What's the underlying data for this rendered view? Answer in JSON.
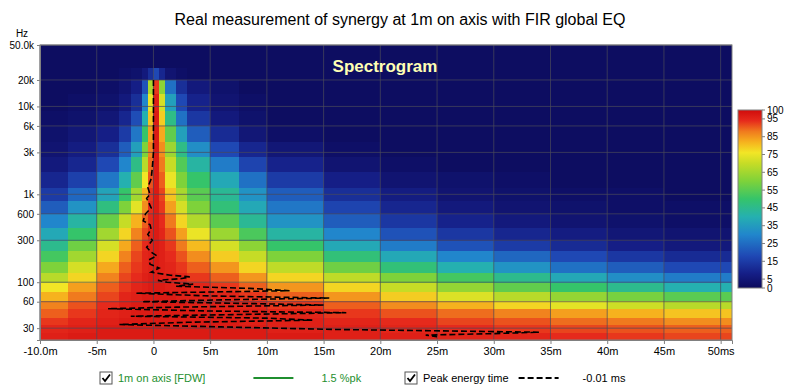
{
  "chart_data": {
    "type": "heatmap",
    "title": "Real measurement of synergy at 1m on axis with FIR global EQ",
    "annotation": "Spectrogram",
    "y_label": "Hz",
    "log": "y",
    "grid": true,
    "xlim": [
      -10,
      51
    ],
    "xticks": [
      {
        "value": -10,
        "label": "-10.0m"
      },
      {
        "value": -5,
        "label": "-5m"
      },
      0,
      {
        "value": 5,
        "label": "5m"
      },
      {
        "value": 10,
        "label": "10m"
      },
      {
        "value": 15,
        "label": "15m"
      },
      {
        "value": 20,
        "label": "20m"
      },
      {
        "value": 25,
        "label": "25m"
      },
      {
        "value": 30,
        "label": "30m"
      },
      {
        "value": 35,
        "label": "35m"
      },
      {
        "value": 40,
        "label": "40m"
      },
      {
        "value": 45,
        "label": "45m"
      },
      {
        "value": 50,
        "label": "50ms"
      }
    ],
    "ylim": [
      22,
      50000
    ],
    "yticks": [
      30,
      60,
      100,
      300,
      600,
      {
        "value": 1000,
        "label": "1k"
      },
      {
        "value": 3000,
        "label": "3k"
      },
      {
        "value": 6000,
        "label": "6k"
      },
      {
        "value": 10000,
        "label": "10k"
      },
      {
        "value": 20000,
        "label": "20k"
      },
      {
        "value": 50000,
        "label": "50.0k"
      }
    ],
    "x_bins": [
      -10,
      -7.5,
      -5,
      -3,
      -2,
      -1,
      -0.5,
      0,
      0.5,
      1,
      2,
      3,
      5,
      7.5,
      10,
      15,
      20,
      25,
      30,
      35,
      40,
      45,
      51
    ],
    "y_bins": [
      22,
      27,
      33,
      40,
      50,
      62,
      78,
      100,
      130,
      170,
      230,
      300,
      420,
      600,
      850,
      1200,
      1800,
      2700,
      4000,
      6000,
      9000,
      14000,
      20000,
      28000,
      50000
    ],
    "values": [
      [
        96,
        97,
        97,
        97,
        97,
        97,
        97,
        97,
        97,
        97,
        97,
        97,
        97,
        97,
        97,
        96,
        96,
        95,
        95,
        94,
        93,
        92
      ],
      [
        95,
        96,
        97,
        97,
        97,
        97,
        97,
        97,
        97,
        97,
        97,
        97,
        97,
        97,
        96,
        96,
        95,
        94,
        93,
        92,
        91,
        90
      ],
      [
        93,
        95,
        96,
        97,
        97,
        97,
        97,
        97,
        97,
        97,
        97,
        97,
        97,
        96,
        96,
        95,
        94,
        92,
        91,
        89,
        88,
        86
      ],
      [
        90,
        93,
        95,
        96,
        97,
        97,
        97,
        97,
        97,
        97,
        97,
        97,
        96,
        96,
        95,
        93,
        91,
        89,
        87,
        84,
        82,
        80
      ],
      [
        87,
        91,
        94,
        96,
        97,
        97,
        97,
        97,
        97,
        97,
        97,
        96,
        96,
        95,
        93,
        90,
        86,
        82,
        78,
        74,
        71,
        68
      ],
      [
        82,
        88,
        92,
        95,
        96,
        97,
        97,
        97,
        97,
        97,
        96,
        96,
        95,
        93,
        90,
        85,
        79,
        73,
        68,
        63,
        59,
        55
      ],
      [
        76,
        84,
        90,
        93,
        95,
        96,
        97,
        97,
        97,
        96,
        96,
        95,
        93,
        90,
        85,
        78,
        70,
        63,
        56,
        50,
        45,
        40
      ],
      [
        68,
        78,
        87,
        92,
        94,
        96,
        97,
        97,
        96,
        96,
        95,
        93,
        90,
        85,
        78,
        69,
        60,
        52,
        45,
        38,
        32,
        28
      ],
      [
        60,
        72,
        83,
        90,
        93,
        95,
        96,
        97,
        96,
        95,
        93,
        90,
        85,
        78,
        69,
        58,
        48,
        40,
        33,
        26,
        22,
        18
      ],
      [
        52,
        65,
        78,
        87,
        92,
        95,
        96,
        97,
        96,
        94,
        91,
        86,
        79,
        70,
        60,
        48,
        38,
        30,
        24,
        18,
        14,
        11
      ],
      [
        45,
        58,
        72,
        83,
        90,
        94,
        96,
        97,
        96,
        93,
        88,
        81,
        72,
        62,
        50,
        38,
        28,
        20,
        15,
        11,
        8,
        6
      ],
      [
        38,
        50,
        65,
        78,
        87,
        92,
        95,
        97,
        95,
        91,
        84,
        75,
        64,
        53,
        42,
        30,
        20,
        14,
        10,
        7,
        5,
        4
      ],
      [
        30,
        42,
        57,
        70,
        82,
        90,
        95,
        97,
        94,
        88,
        78,
        67,
        55,
        44,
        33,
        22,
        14,
        9,
        6,
        4,
        3,
        2
      ],
      [
        22,
        33,
        47,
        60,
        74,
        86,
        94,
        97,
        93,
        84,
        72,
        60,
        48,
        38,
        27,
        17,
        10,
        6,
        4,
        3,
        2,
        2
      ],
      [
        15,
        24,
        37,
        50,
        65,
        82,
        93,
        97,
        92,
        80,
        66,
        55,
        44,
        33,
        22,
        12,
        7,
        4,
        3,
        2,
        2,
        1
      ],
      [
        10,
        16,
        27,
        40,
        56,
        76,
        91,
        97,
        90,
        75,
        60,
        50,
        38,
        26,
        15,
        8,
        4,
        3,
        2,
        1,
        1,
        1
      ],
      [
        6,
        10,
        18,
        30,
        46,
        68,
        89,
        97,
        88,
        70,
        54,
        42,
        28,
        17,
        9,
        4,
        2,
        1,
        1,
        1,
        1,
        1
      ],
      [
        4,
        7,
        12,
        22,
        36,
        60,
        87,
        97,
        86,
        64,
        46,
        32,
        18,
        10,
        5,
        2,
        1,
        1,
        1,
        1,
        1,
        1
      ],
      [
        3,
        5,
        8,
        15,
        27,
        50,
        84,
        97,
        83,
        56,
        36,
        22,
        11,
        5,
        2,
        1,
        1,
        1,
        1,
        1,
        1,
        1
      ],
      [
        2,
        3,
        5,
        10,
        19,
        40,
        80,
        97,
        79,
        46,
        26,
        14,
        6,
        3,
        1,
        1,
        1,
        1,
        1,
        1,
        1,
        1
      ],
      [
        1,
        2,
        3,
        6,
        12,
        30,
        75,
        96,
        72,
        36,
        18,
        9,
        4,
        2,
        1,
        1,
        1,
        1,
        1,
        1,
        1,
        1
      ],
      [
        1,
        1,
        2,
        4,
        8,
        20,
        66,
        93,
        62,
        26,
        12,
        6,
        3,
        1,
        1,
        1,
        1,
        1,
        1,
        1,
        1,
        1
      ],
      [
        1,
        1,
        1,
        2,
        3,
        6,
        12,
        18,
        10,
        4,
        2,
        1,
        1,
        1,
        1,
        1,
        1,
        1,
        1,
        1,
        1,
        1
      ],
      [
        1,
        1,
        1,
        1,
        1,
        1,
        1,
        1,
        1,
        1,
        1,
        1,
        1,
        1,
        1,
        1,
        1,
        1,
        1,
        1,
        1,
        1
      ]
    ],
    "colorbar": {
      "range": [
        0,
        100
      ],
      "ticks": [
        0,
        5,
        15,
        25,
        35,
        45,
        55,
        65,
        75,
        85,
        95,
        100
      ]
    },
    "series": [
      {
        "name": "1m on axis [FDW]",
        "color": "#1f8f2f",
        "line_style": "solid",
        "readout": "1.5 %pk"
      },
      {
        "name": "Peak energy time",
        "color": "#000000",
        "line_style": "dashed",
        "readout": "-0.01 ms",
        "x": [
          0,
          0,
          0,
          0,
          0,
          -0.1,
          -0.2,
          -0.5,
          -0.3,
          -0.6,
          -0.4,
          -0.2,
          -0.7,
          -0.9,
          -0.3,
          -0.2,
          -0.5,
          -0.1,
          -0.6,
          -0.2,
          0.3,
          -0.4,
          -0.3,
          0.5,
          -0.2,
          1.5,
          3.2,
          2.5,
          0.4,
          1.2,
          3.5,
          2.0,
          8.5,
          12.0,
          -1.5,
          4.5,
          15.5,
          6.0,
          -1.0,
          9.0,
          15.0,
          2.0,
          -4.0,
          5.0,
          17.0,
          8.0,
          -2.0,
          10.0,
          14.0,
          3.0,
          -3.0,
          6.0,
          16.0,
          34.0,
          30.0,
          24.0,
          25.0
        ],
        "values": [
          20000,
          15000,
          10000,
          6000,
          3000,
          2000,
          1500,
          1200,
          1000,
          900,
          800,
          700,
          600,
          500,
          450,
          400,
          350,
          300,
          250,
          220,
          200,
          180,
          160,
          145,
          130,
          120,
          115,
          110,
          105,
          100,
          95,
          90,
          85,
          80,
          75,
          70,
          66,
          63,
          60,
          57,
          55,
          52,
          50,
          47,
          45,
          43,
          41,
          39,
          37,
          35,
          33,
          31,
          29,
          27,
          26,
          25,
          24
        ]
      }
    ]
  }
}
